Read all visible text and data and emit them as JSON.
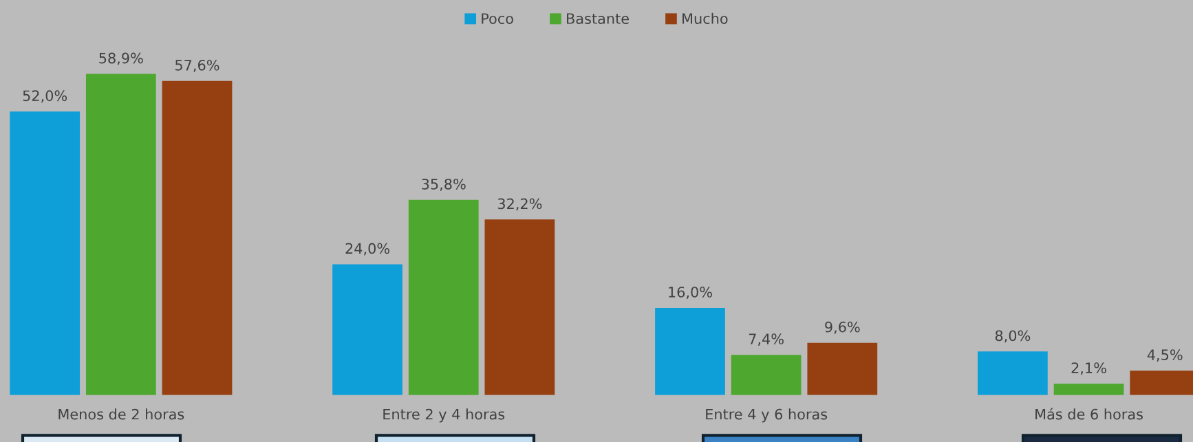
{
  "chart_data": {
    "type": "bar",
    "categories": [
      "Menos de 2 horas",
      "Entre 2 y 4 horas",
      "Entre 4 y 6 horas",
      "Más de 6 horas"
    ],
    "series": [
      {
        "name": "Poco",
        "color": "#0e9fd8",
        "values": [
          52.0,
          24.0,
          16.0,
          8.0
        ],
        "value_labels": [
          "52,0%",
          "24,0%",
          "16,0%",
          "8,0%"
        ]
      },
      {
        "name": "Bastante",
        "color": "#4ea72e",
        "values": [
          58.9,
          35.8,
          7.4,
          2.1
        ],
        "value_labels": [
          "58,9%",
          "35,8%",
          "7,4%",
          "2,1%"
        ]
      },
      {
        "name": "Mucho",
        "color": "#963f10",
        "values": [
          57.6,
          32.2,
          9.6,
          4.5
        ],
        "value_labels": [
          "57,6%",
          "32,2%",
          "9,6%",
          "4,5%"
        ]
      }
    ],
    "legend": "top",
    "grid": false
  }
}
